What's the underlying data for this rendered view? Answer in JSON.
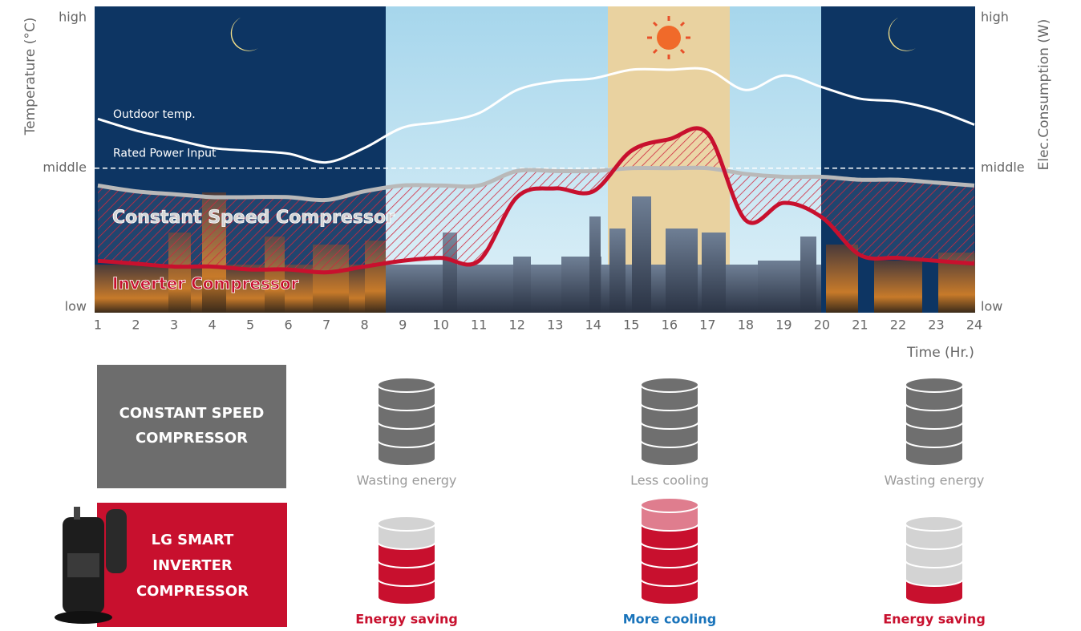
{
  "chart_data": {
    "type": "line",
    "x": [
      1,
      2,
      3,
      4,
      5,
      6,
      7,
      8,
      9,
      10,
      11,
      12,
      13,
      14,
      15,
      16,
      17,
      18,
      19,
      20,
      21,
      22,
      23,
      24
    ],
    "xlim": [
      1,
      24
    ],
    "xticks": [
      1,
      2,
      3,
      4,
      5,
      6,
      7,
      8,
      9,
      10,
      11,
      12,
      13,
      14,
      15,
      16,
      17,
      18,
      19,
      20,
      21,
      22,
      23,
      24
    ],
    "x_label": "Time (Hr.)",
    "y_label": "Temperature (°C)",
    "y2_label": "Elec.Consumption (W)",
    "ylim": [
      0,
      100
    ],
    "yticks": [
      {
        "value": 0,
        "label": "low"
      },
      {
        "value": 48,
        "label": "middle"
      },
      {
        "value": 100,
        "label": "high"
      }
    ],
    "y2lim": [
      0,
      100
    ],
    "y2ticks": [
      {
        "value": 0,
        "label": "low"
      },
      {
        "value": 48,
        "label": "middle"
      },
      {
        "value": 100,
        "label": "high"
      }
    ],
    "reference_line": {
      "label": "Rated Power Input",
      "value": 48
    },
    "series": [
      {
        "name": "Outdoor temp.",
        "color": "#ffffff",
        "values": [
          65,
          61,
          58,
          55,
          54,
          53,
          50,
          55,
          62,
          64,
          67,
          75,
          78,
          79,
          82,
          82,
          82,
          75,
          80,
          76,
          72,
          71,
          68,
          63
        ]
      },
      {
        "name": "Constant Speed Compressor",
        "color": "#b9b9b9",
        "axis": "y2",
        "values": [
          42,
          40,
          39,
          38,
          38,
          38,
          37,
          40,
          42,
          42,
          42,
          47,
          47,
          47,
          48,
          48,
          48,
          46,
          45,
          45,
          44,
          44,
          43,
          42
        ]
      },
      {
        "name": "Inverter Compressor",
        "color": "#c8102e",
        "axis": "y2",
        "values": [
          16,
          15,
          14,
          14,
          13,
          13,
          12,
          14,
          16,
          17,
          16,
          38,
          41,
          40,
          54,
          58,
          60,
          30,
          36,
          31,
          18,
          17,
          16,
          15
        ]
      }
    ]
  },
  "comparison": {
    "rows": [
      {
        "label": [
          "CONSTANT SPEED",
          "COMPRESSOR"
        ],
        "items": [
          "Wasting energy",
          "Less cooling",
          "Wasting energy"
        ]
      },
      {
        "label": [
          "LG SMART",
          "INVERTER",
          "COMPRESSOR"
        ],
        "items": [
          "Energy saving",
          "More cooling",
          "Energy saving"
        ]
      }
    ]
  }
}
